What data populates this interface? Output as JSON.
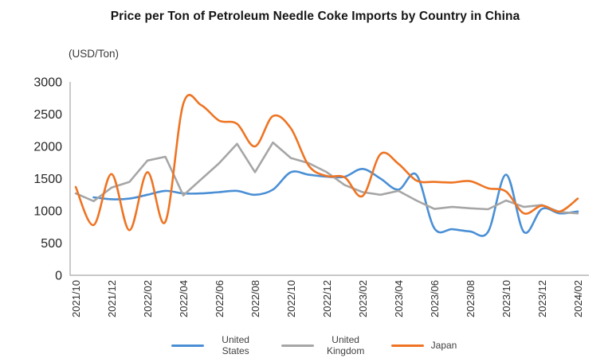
{
  "title": "Price per Ton of Petroleum Needle Coke Imports by Country in China",
  "units_label": "(USD/Ton)",
  "colors": {
    "axis": "#a8a8a8",
    "tick_text": "#262626",
    "x_tick_text": "#2f2f2f",
    "title_text": "#161616",
    "legend_text": "#404040",
    "background": "#ffffff",
    "us_blue": "#4a8fd5",
    "uk_gray": "#a6a6a6",
    "japan_orange": "#ee7423"
  },
  "chart_data": {
    "type": "line",
    "title": "Price per Ton of Petroleum Needle Coke Imports by Country in China",
    "xlabel": "",
    "ylabel": "(USD/Ton)",
    "ylim": [
      0,
      3000
    ],
    "y_ticks": [
      0,
      500,
      1000,
      1500,
      2000,
      2500,
      3000
    ],
    "x_tick_interval": 2,
    "grid": false,
    "legend_position": "bottom",
    "categories": [
      "2021/10",
      "2021/11",
      "2021/12",
      "2022/01",
      "2022/02",
      "2022/03",
      "2022/04",
      "2022/05",
      "2022/06",
      "2022/07",
      "2022/08",
      "2022/09",
      "2022/10",
      "2022/11",
      "2022/12",
      "2023/01",
      "2023/02",
      "2023/03",
      "2023/04",
      "2023/05",
      "2023/06",
      "2023/07",
      "2023/08",
      "2023/09",
      "2023/10",
      "2023/11",
      "2023/12",
      "2024/01",
      "2024/02"
    ],
    "series": [
      {
        "name": "United States",
        "color": "#4a8fd5",
        "smoothed": true,
        "values": [
          null,
          1210,
          1180,
          1190,
          1250,
          1310,
          1270,
          1270,
          1290,
          1310,
          1250,
          1330,
          1600,
          1560,
          1530,
          1530,
          1650,
          1500,
          1330,
          1560,
          730,
          715,
          680,
          675,
          1560,
          670,
          1030,
          960,
          990
        ]
      },
      {
        "name": "United Kingdom",
        "color": "#a6a6a6",
        "smoothed": false,
        "values": [
          1270,
          1150,
          1360,
          1450,
          1780,
          1840,
          1240,
          1490,
          1740,
          2040,
          1600,
          2060,
          1820,
          1740,
          1600,
          1400,
          1290,
          1250,
          1310,
          1160,
          1030,
          1060,
          1040,
          1025,
          1160,
          1060,
          1090,
          980,
          960
        ]
      },
      {
        "name": "Japan",
        "color": "#ee7423",
        "smoothed": true,
        "values": [
          1370,
          780,
          1570,
          700,
          1600,
          830,
          2660,
          2640,
          2400,
          2350,
          2000,
          2470,
          2280,
          1700,
          1540,
          1520,
          1230,
          1880,
          1730,
          1470,
          1450,
          1440,
          1460,
          1350,
          1300,
          960,
          1080,
          990,
          1190
        ]
      }
    ]
  }
}
